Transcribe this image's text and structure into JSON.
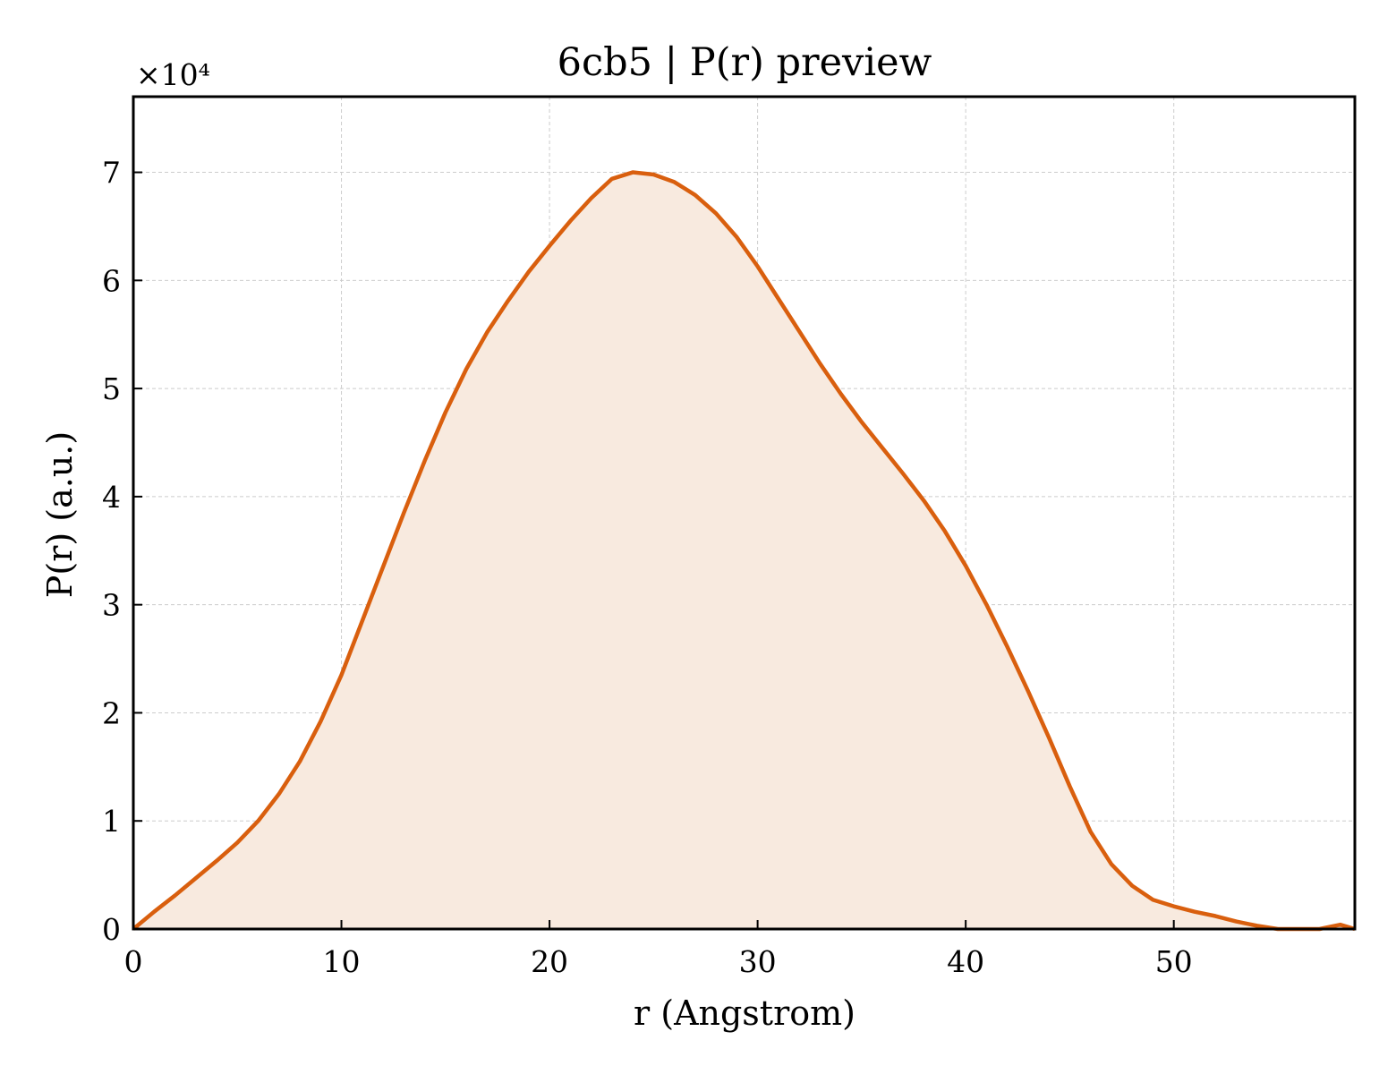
{
  "chart_data": {
    "type": "area",
    "title": "6cb5 | P(r) preview",
    "xlabel": "r (Angstrom)",
    "ylabel": "P(r) (a.u.)",
    "y_multiplier_label": "×10⁴",
    "xlim": [
      0,
      58.7
    ],
    "ylim": [
      0,
      7.7
    ],
    "xticks": [
      0,
      10,
      20,
      30,
      40,
      50
    ],
    "yticks": [
      0,
      1,
      2,
      3,
      4,
      5,
      6,
      7
    ],
    "grid": true,
    "line_color": "#d95f0e",
    "fill_color": "#f8eadf",
    "series": [
      {
        "x": [
          0,
          1,
          2,
          3,
          4,
          5,
          6,
          7,
          8,
          9,
          10,
          11,
          12,
          13,
          14,
          15,
          16,
          17,
          18,
          19,
          20,
          21,
          22,
          23,
          24,
          25,
          26,
          27,
          28,
          29,
          30,
          31,
          32,
          33,
          34,
          35,
          36,
          37,
          38,
          39,
          40,
          41,
          42,
          43,
          44,
          45,
          46,
          47,
          48,
          49,
          50,
          51,
          52,
          53,
          54,
          55,
          56,
          57,
          58,
          58.7
        ],
        "values": [
          0.0,
          0.16,
          0.31,
          0.47,
          0.63,
          0.8,
          1.0,
          1.25,
          1.55,
          1.92,
          2.35,
          2.85,
          3.35,
          3.85,
          4.33,
          4.78,
          5.18,
          5.52,
          5.81,
          6.08,
          6.32,
          6.55,
          6.76,
          6.94,
          7.0,
          6.98,
          6.91,
          6.79,
          6.62,
          6.4,
          6.13,
          5.83,
          5.53,
          5.23,
          4.95,
          4.69,
          4.45,
          4.21,
          3.96,
          3.68,
          3.36,
          3.0,
          2.61,
          2.2,
          1.77,
          1.32,
          0.9,
          0.6,
          0.4,
          0.27,
          0.21,
          0.16,
          0.12,
          0.07,
          0.03,
          0.0,
          0.0,
          0.0,
          0.04,
          0.0
        ]
      }
    ]
  }
}
